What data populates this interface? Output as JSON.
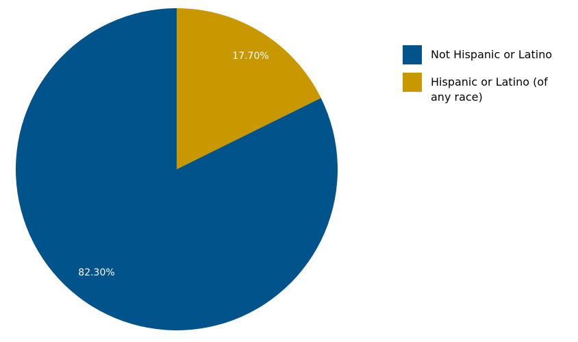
{
  "chart_data": {
    "type": "pie",
    "categories": [
      "Not Hispanic or Latino",
      "Hispanic or Latino (of any race)"
    ],
    "values": [
      82.3,
      17.7
    ],
    "slice_labels": [
      "82.30%",
      "17.70%"
    ],
    "colors": [
      "#00538b",
      "#c99700"
    ],
    "start": "top",
    "direction": "clockwise, starting with Hispanic or Latino slice",
    "legend_position": "right"
  },
  "legend": {
    "items": [
      {
        "label": "Not Hispanic or Latino",
        "color": "#00538b"
      },
      {
        "label": "Hispanic or Latino (of any race)",
        "color": "#c99700"
      }
    ]
  }
}
